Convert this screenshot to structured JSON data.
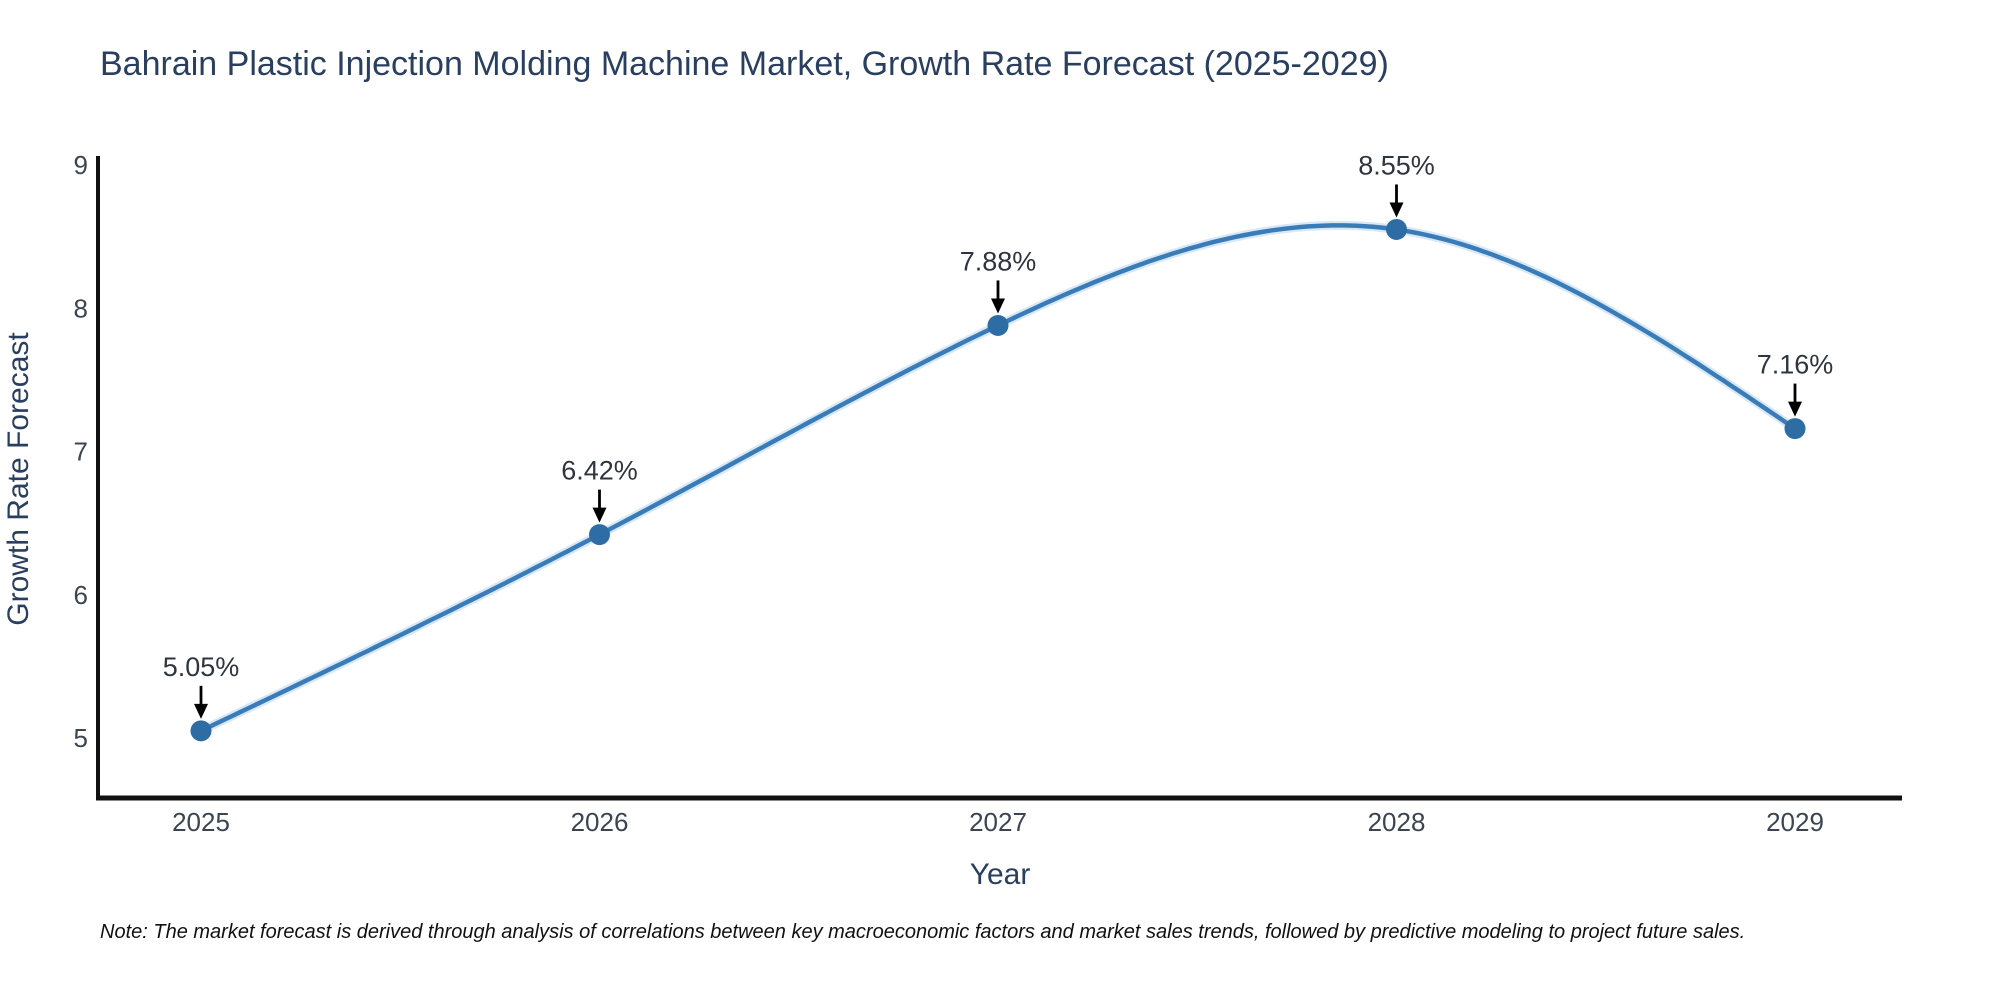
{
  "title": "Bahrain Plastic Injection Molding Machine Market, Growth Rate Forecast (2025-2029)",
  "note": "Note: The market forecast is derived through analysis of correlations between key macroeconomic factors and market sales trends, followed by predictive modeling to project future sales.",
  "chart_data": {
    "type": "line",
    "x": [
      2025,
      2026,
      2027,
      2028,
      2029
    ],
    "values": [
      5.05,
      6.42,
      7.88,
      8.55,
      7.16
    ],
    "point_labels": [
      "5.05%",
      "6.42%",
      "7.88%",
      "8.55%",
      "7.16%"
    ],
    "xticklabels": [
      "2025",
      "2026",
      "2027",
      "2028",
      "2029"
    ],
    "yticks": [
      5,
      6,
      7,
      8,
      9
    ],
    "xlabel": "Year",
    "ylabel": "Growth Rate Forecast",
    "xlim": [
      2024.74,
      2029.27
    ],
    "ylim": [
      4.57,
      9.05
    ],
    "grid": false,
    "legend": false,
    "colors": {
      "line": "#3a7cb8",
      "line_halo": "#aacdea",
      "marker": "#2e6da4",
      "arrow": "#000000",
      "axis": "#111111",
      "title_text": "#2a3f5f",
      "tick_text": "#3b4552",
      "annotation_text": "#2e353f",
      "note_text": "#111111",
      "background": "#ffffff"
    }
  }
}
